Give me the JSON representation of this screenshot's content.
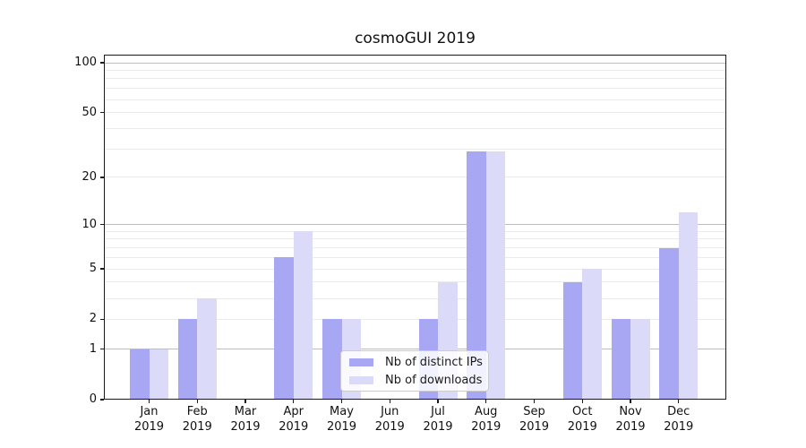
{
  "title": "cosmoGUI 2019",
  "legend": {
    "items": [
      {
        "label": "Nb of distinct IPs",
        "color": "#a7a7f3"
      },
      {
        "label": "Nb of downloads",
        "color": "#dbdbf9"
      }
    ]
  },
  "colors": {
    "series1": "#a7a7f3",
    "series2": "#dbdbf9",
    "major_grid": "#bdbdbd",
    "minor_grid": "#ebebeb",
    "axis": "#1a1a1a",
    "background": "#ffffff"
  },
  "chart_data": {
    "type": "bar",
    "title": "cosmoGUI 2019",
    "categories": [
      "Jan",
      "Feb",
      "Mar",
      "Apr",
      "May",
      "Jun",
      "Jul",
      "Aug",
      "Sep",
      "Oct",
      "Nov",
      "Dec"
    ],
    "category_year": "2019",
    "series": [
      {
        "name": "Nb of distinct IPs",
        "color": "#a7a7f3",
        "values": [
          1,
          2,
          0,
          6,
          2,
          0,
          2,
          29,
          0,
          4,
          2,
          7
        ]
      },
      {
        "name": "Nb of downloads",
        "color": "#dbdbf9",
        "values": [
          1,
          3,
          0,
          9,
          2,
          0,
          4,
          29,
          0,
          5,
          2,
          12
        ]
      }
    ],
    "xlabel": "",
    "ylabel": "",
    "yscale": "log10(1+v)",
    "ylim": [
      0,
      111
    ],
    "yticks": [
      0,
      1,
      2,
      5,
      10,
      20,
      50,
      100
    ],
    "major_gridlines": [
      1,
      10,
      100
    ],
    "minor_gridlines": [
      2,
      3,
      4,
      5,
      6,
      7,
      8,
      9,
      20,
      30,
      40,
      50,
      60,
      70,
      80,
      90
    ],
    "grid": true,
    "legend_position": "lower center"
  }
}
